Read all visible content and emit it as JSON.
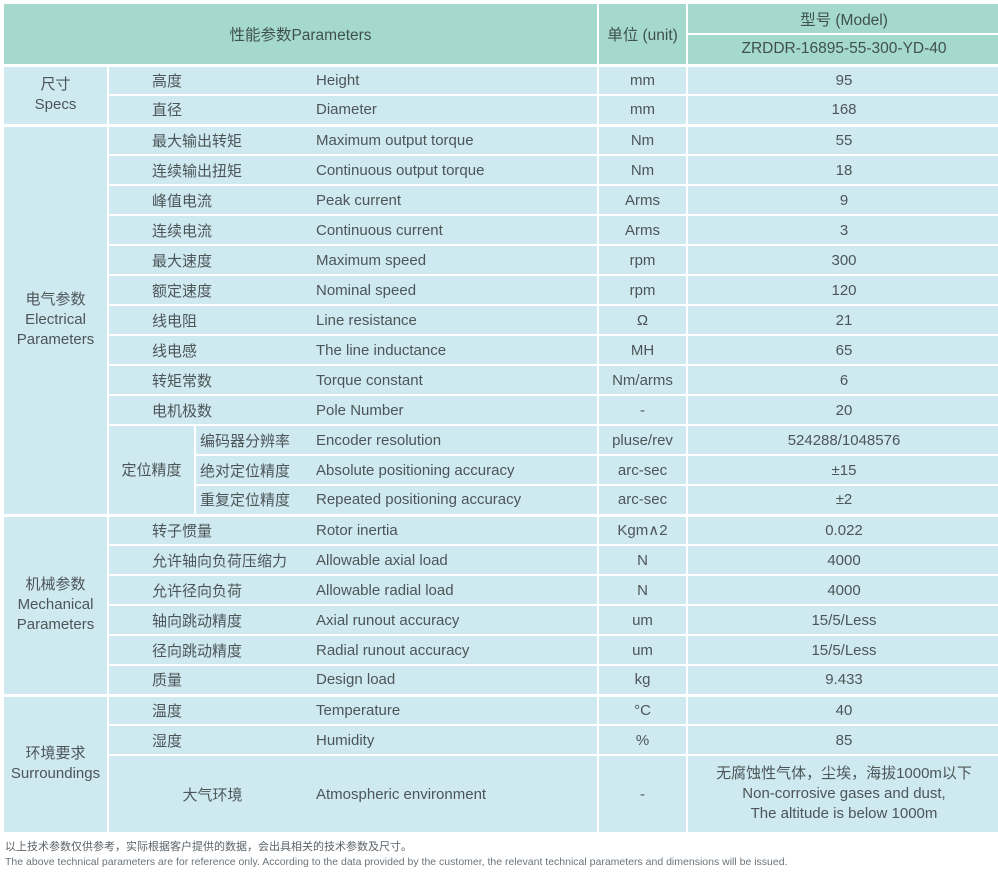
{
  "header": {
    "parameters": "性能参数Parameters",
    "unit": "单位 (unit)",
    "model_label": "型号 (Model)",
    "model_value": "ZRDDR-16895-55-300-YD-40"
  },
  "sections": [
    {
      "id": "specs",
      "label_zh": "尺寸",
      "label_en": "Specs",
      "rows": [
        {
          "zh": "高度",
          "en": "Height",
          "unit": "mm",
          "value": "95"
        },
        {
          "zh": "直径",
          "en": "Diameter",
          "unit": "mm",
          "value": "168"
        }
      ]
    },
    {
      "id": "electrical",
      "label_zh": "电气参数",
      "label_en": "Electrical Parameters",
      "rows": [
        {
          "zh": "最大输出转矩",
          "en": "Maximum output torque",
          "unit": "Nm",
          "value": "55"
        },
        {
          "zh": "连续输出扭矩",
          "en": "Continuous output torque",
          "unit": "Nm",
          "value": "18"
        },
        {
          "zh": "峰值电流",
          "en": "Peak current",
          "unit": "Arms",
          "value": "9"
        },
        {
          "zh": "连续电流",
          "en": "Continuous current",
          "unit": "Arms",
          "value": "3"
        },
        {
          "zh": "最大速度",
          "en": "Maximum speed",
          "unit": "rpm",
          "value": "300"
        },
        {
          "zh": "额定速度",
          "en": "Nominal speed",
          "unit": "rpm",
          "value": "120"
        },
        {
          "zh": "线电阻",
          "en": "Line resistance",
          "unit": "Ω",
          "value": "21"
        },
        {
          "zh": "线电感",
          "en": "The line inductance",
          "unit": "MH",
          "value": "65"
        },
        {
          "zh": "转矩常数",
          "en": "Torque constant",
          "unit": "Nm/arms",
          "value": "6"
        },
        {
          "zh": "电机极数",
          "en": "Pole Number",
          "unit": "-",
          "value": "20"
        }
      ],
      "subgroup": {
        "label_zh": "定位精度",
        "rows": [
          {
            "zh": "编码器分辨率",
            "en": "Encoder resolution",
            "unit": "pluse/rev",
            "value": "524288/1048576"
          },
          {
            "zh": "绝对定位精度",
            "en": "Absolute positioning accuracy",
            "unit": "arc-sec",
            "value": "±15"
          },
          {
            "zh": "重复定位精度",
            "en": "Repeated positioning accuracy",
            "unit": "arc-sec",
            "value": "±2"
          }
        ]
      }
    },
    {
      "id": "mechanical",
      "label_zh": "机械参数",
      "label_en": "Mechanical Parameters",
      "rows": [
        {
          "zh": "转子惯量",
          "en": "Rotor inertia",
          "unit": "Kgm∧2",
          "value": "0.022"
        },
        {
          "zh": "允许轴向负荷压缩力",
          "en": "Allowable axial load",
          "unit": "N",
          "value": "4000"
        },
        {
          "zh": "允许径向负荷",
          "en": "Allowable radial load",
          "unit": "N",
          "value": "4000"
        },
        {
          "zh": "轴向跳动精度",
          "en": "Axial runout accuracy",
          "unit": "um",
          "value": "15/5/Less"
        },
        {
          "zh": "径向跳动精度",
          "en": "Radial runout accuracy",
          "unit": "um",
          "value": "15/5/Less"
        },
        {
          "zh": "质量",
          "en": "Design load",
          "unit": "kg",
          "value": "9.433"
        }
      ]
    },
    {
      "id": "surroundings",
      "label_zh": "环境要求",
      "label_en": "Surroundings",
      "rows": [
        {
          "zh": "温度",
          "en": "Temperature",
          "unit": "°C",
          "value": "40"
        },
        {
          "zh": "湿度",
          "en": "Humidity",
          "unit": "%",
          "value": "85"
        },
        {
          "zh": "大气环境",
          "en": "Atmospheric environment",
          "unit": "-",
          "center_zh": true,
          "tall": true,
          "value_lines": [
            "无腐蚀性气体，尘埃，海拔1000m以下",
            "Non-corrosive gases and dust,",
            "The altitude is below 1000m"
          ]
        }
      ]
    }
  ],
  "footer": {
    "zh": "以上技术参数仅供参考，实际根据客户提供的数据，会出具相关的技术参数及尺寸。",
    "en": "The above technical parameters are for reference only. According to the data provided by the customer, the relevant technical parameters and dimensions will be issued."
  }
}
